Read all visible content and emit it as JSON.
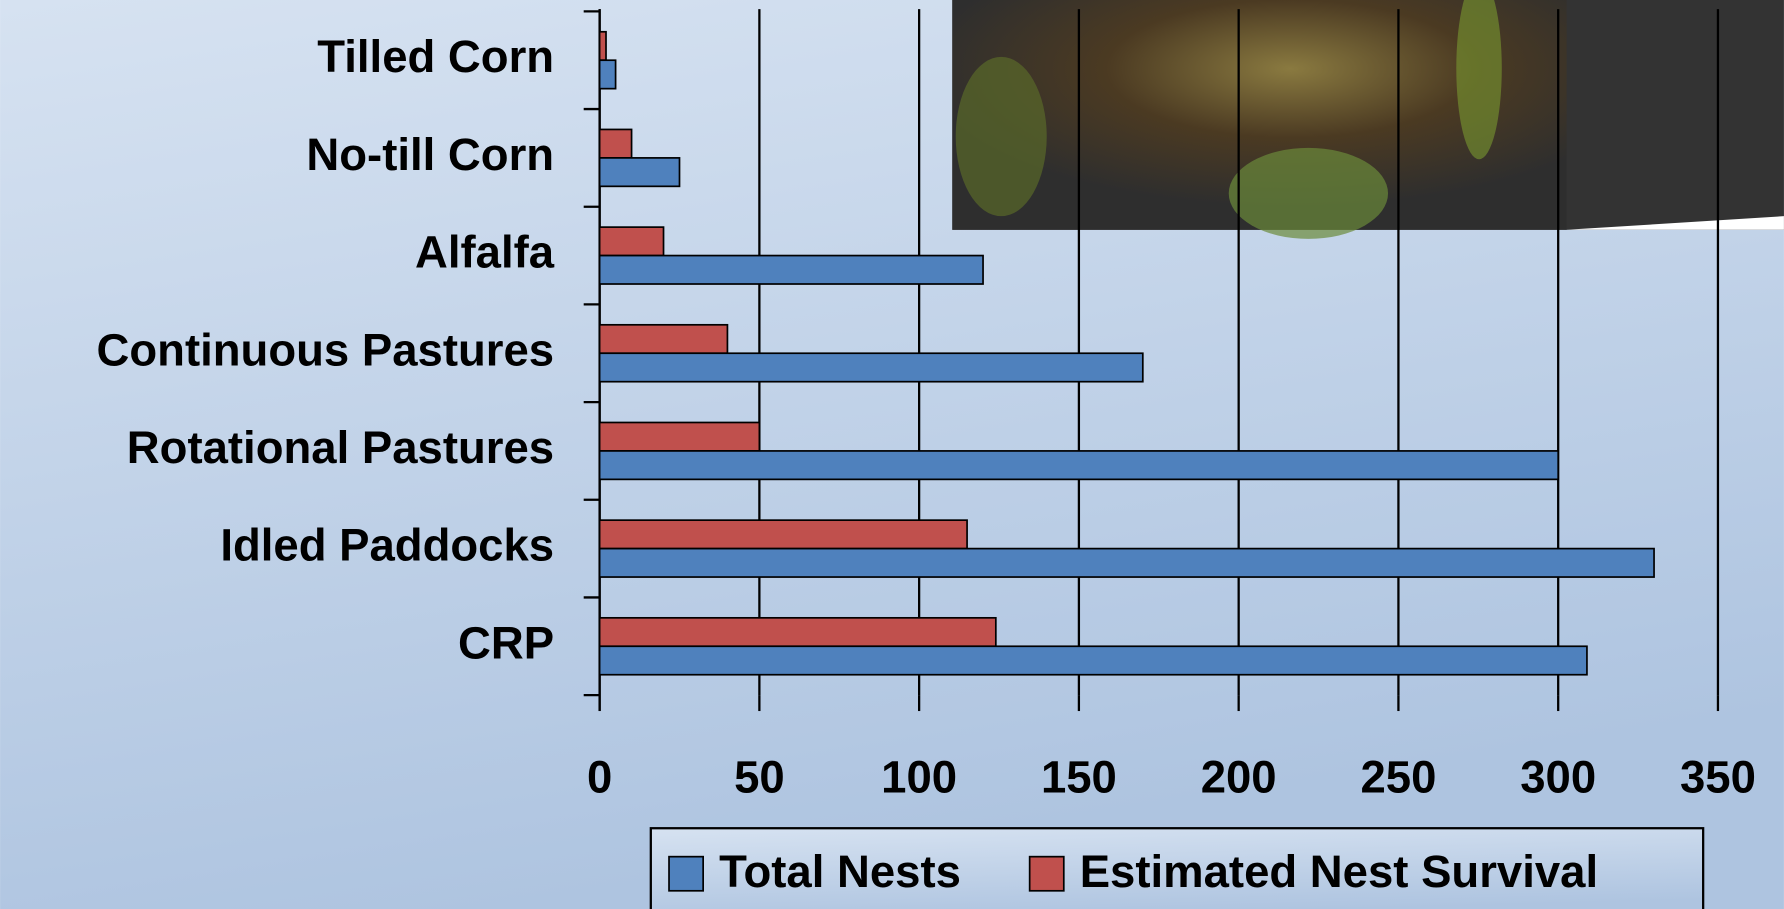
{
  "chart_data": {
    "type": "hbar",
    "categories": [
      "Tilled Corn",
      "No-till Corn",
      "Alfalfa",
      "Continuous Pastures",
      "Rotational Pastures",
      "Idled Paddocks",
      "CRP"
    ],
    "series": [
      {
        "name": "Total Nests",
        "color": "#4f81bd",
        "values": [
          5,
          25,
          120,
          170,
          300,
          330,
          309
        ]
      },
      {
        "name": "Estimated Nest Survival",
        "color": "#c0504d",
        "values": [
          2,
          10,
          20,
          40,
          50,
          115,
          124
        ]
      }
    ],
    "xlim": [
      0,
      350
    ],
    "xticks": [
      0,
      50,
      100,
      150,
      200,
      250,
      300,
      350
    ],
    "grid": true,
    "legend": "bottom"
  }
}
